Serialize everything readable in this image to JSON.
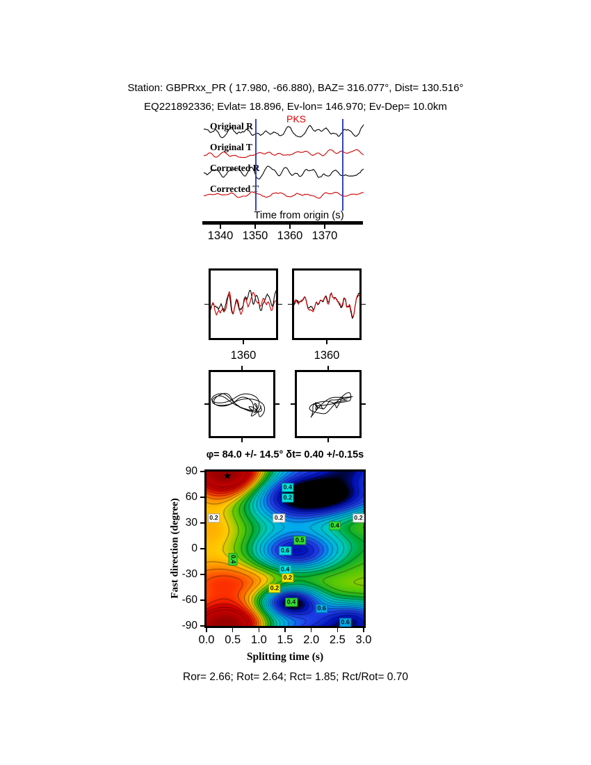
{
  "header": {
    "line1": "Station: GBPRxx_PR (  17.980,  -66.880), BAZ=  316.077°, Dist=  130.516°",
    "line2": "EQ221892336; Evlat=  18.896, Ev-lon= 146.970; Ev-Dep= 10.0km",
    "station": "GBPRxx_PR",
    "station_lat": 17.98,
    "station_lon": -66.88,
    "baz_deg": 316.077,
    "dist_deg": 130.516,
    "event_id": "EQ221892336",
    "ev_lat": 18.896,
    "ev_lon": 146.97,
    "ev_dep": "10.0km"
  },
  "footer": {
    "stats": "Ror= 2.66; Rot= 2.64; Rct= 1.85; Rct/Rot= 0.70",
    "quality": {
      "Ror": 2.66,
      "Rot": 2.64,
      "Rct": 1.85,
      "Rct_over_Rot": 0.7
    }
  },
  "chart_data": [
    {
      "id": "waveform-panel",
      "type": "line",
      "phase_label": "PKS",
      "phase_color": "#e00000",
      "traces": [
        {
          "label": "Original R",
          "color": "#000000"
        },
        {
          "label": "Original T",
          "color": "#cc0000"
        },
        {
          "label": "Corrected R",
          "color": "#000000"
        },
        {
          "label": "Corrected T",
          "color": "#cc0000"
        }
      ],
      "xlabel": "Time from origin (s)",
      "xlim": [
        1334.8,
        1381.0
      ],
      "xticks": [
        1340,
        1350,
        1360,
        1370
      ],
      "window": {
        "start": 1350,
        "end": 1375,
        "color": "#3344bb"
      }
    },
    {
      "id": "zoom-original",
      "type": "line",
      "xticks": [
        1360
      ],
      "colors": [
        "#000000",
        "#cc0000"
      ]
    },
    {
      "id": "zoom-corrected",
      "type": "line",
      "xticks": [
        1360
      ],
      "colors": [
        "#000000",
        "#cc0000"
      ]
    },
    {
      "id": "particle-motion-original",
      "type": "scatter",
      "color": "#000000"
    },
    {
      "id": "particle-motion-corrected",
      "type": "scatter",
      "color": "#000000"
    },
    {
      "id": "error-surface",
      "type": "heatmap",
      "title": "φ= 84.0 +/- 14.5° δt= 0.40 +/-0.15s",
      "xlabel": "Splitting time (s)",
      "ylabel": "Fast direction (degree)",
      "xlim": [
        0,
        3
      ],
      "ylim": [
        -90,
        90
      ],
      "xtick_labels": [
        "0.0",
        "0.5",
        "1.0",
        "1.5",
        "2.0",
        "2.5",
        "3.0"
      ],
      "xtick_values": [
        0,
        0.5,
        1,
        1.5,
        2,
        2.5,
        3
      ],
      "ytick_values": [
        90,
        60,
        30,
        0,
        -30,
        -60,
        -90
      ],
      "grid": false,
      "best_fit": {
        "fast_direction_deg": 84.0,
        "fast_direction_err_deg": 14.5,
        "delay_time_s": 0.4,
        "delay_time_err_s": 0.15
      },
      "star": {
        "x": 0.4,
        "y": 84
      },
      "contour_levels_step": 0.1,
      "contour_labels": [
        {
          "x": 1.55,
          "y": 71,
          "text": "0.4",
          "bg": "#00e5e5"
        },
        {
          "x": 1.55,
          "y": 59,
          "text": "0.2",
          "bg": "#00e5e5"
        },
        {
          "x": 0.14,
          "y": 36,
          "text": "0.2",
          "bg": "#ffffff"
        },
        {
          "x": 1.38,
          "y": 36,
          "text": "0.2",
          "bg": "#ffffff"
        },
        {
          "x": 2.9,
          "y": 36,
          "text": "0.2",
          "bg": "#ffffff"
        },
        {
          "x": 2.45,
          "y": 27,
          "text": "0.4",
          "bg": "#33dd33"
        },
        {
          "x": 1.78,
          "y": 10,
          "text": "0.5",
          "bg": "#33dd33"
        },
        {
          "x": 1.5,
          "y": -2,
          "text": "0.6",
          "bg": "#00e5e5"
        },
        {
          "x": 0.5,
          "y": -12,
          "text": "0.4",
          "bg": "#33dd33",
          "rot": 90
        },
        {
          "x": 1.5,
          "y": -24,
          "text": "0.4",
          "bg": "#00e5e5"
        },
        {
          "x": 1.55,
          "y": -34,
          "text": "0.2",
          "bg": "#ffee00"
        },
        {
          "x": 1.3,
          "y": -46,
          "text": "0.2",
          "bg": "#ffee00"
        },
        {
          "x": 1.62,
          "y": -62,
          "text": "0.4",
          "bg": "#33dd33"
        },
        {
          "x": 2.2,
          "y": -70,
          "text": "0.6",
          "bg": "#00aaee"
        },
        {
          "x": 2.65,
          "y": -86,
          "text": "0.6",
          "bg": "#00aaee"
        }
      ],
      "surface_model": {
        "base_offset": 0.05,
        "base_amp": 0.18,
        "base_phase_deg": 46,
        "blobs": [
          {
            "amp": 1.0,
            "x": 0.45,
            "y": 84,
            "sx": 0.5,
            "sy": 20
          },
          {
            "amp": -1.05,
            "x": 1.7,
            "y": -4,
            "sx": 0.55,
            "sy": 16
          },
          {
            "amp": -1.35,
            "x": 2.05,
            "y": 62,
            "sx": 0.85,
            "sy": 22
          },
          {
            "amp": -1.35,
            "x": 1.6,
            "y": -62,
            "sx": 0.42,
            "sy": 13
          },
          {
            "amp": -0.85,
            "x": 2.8,
            "y": -80,
            "sx": 0.5,
            "sy": 14
          },
          {
            "amp": 0.5,
            "x": 0.1,
            "y": 30,
            "sx": 0.7,
            "sy": 28
          },
          {
            "amp": 0.45,
            "x": 2.95,
            "y": 33,
            "sx": 0.8,
            "sy": 14
          },
          {
            "amp": 0.4,
            "x": 0.45,
            "y": -40,
            "sx": 0.8,
            "sy": 18
          },
          {
            "amp": 0.55,
            "x": 0.3,
            "y": -88,
            "sx": 0.5,
            "sy": 16
          }
        ],
        "colormap": [
          [
            -1.6,
            "#000000"
          ],
          [
            -1.1,
            "#000000"
          ],
          [
            -0.95,
            "#0011bb"
          ],
          [
            -0.7,
            "#2244ee"
          ],
          [
            -0.45,
            "#00aaee"
          ],
          [
            -0.2,
            "#00ccbb"
          ],
          [
            -0.02,
            "#00aa33"
          ],
          [
            0.18,
            "#66cc00"
          ],
          [
            0.32,
            "#ffcc00"
          ],
          [
            0.48,
            "#ff8800"
          ],
          [
            0.65,
            "#ff3300"
          ],
          [
            0.85,
            "#dd0000"
          ],
          [
            1.4,
            "#990000"
          ]
        ]
      }
    }
  ]
}
